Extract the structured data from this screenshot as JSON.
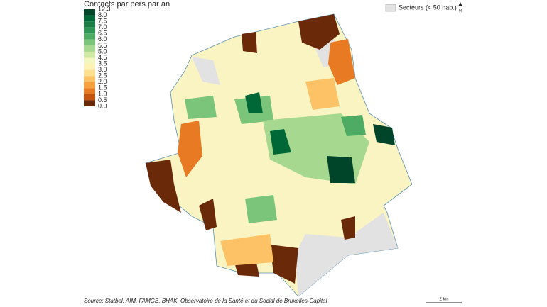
{
  "legend": {
    "title": "Contacts par pers par an",
    "labels": [
      "12.3",
      "8.0",
      "7.5",
      "7.0",
      "6.5",
      "6.0",
      "5.5",
      "5.0",
      "4.5",
      "3.5",
      "3.0",
      "2.5",
      "2.0",
      "1.5",
      "1.0",
      "0.5",
      "0.0"
    ],
    "colors": [
      "#00452a",
      "#006837",
      "#1a7f45",
      "#2e9555",
      "#4eab63",
      "#7bc57b",
      "#a6d88f",
      "#cfe9a5",
      "#f3f7bf",
      "#fef3b5",
      "#fde08f",
      "#fdc266",
      "#f8a03e",
      "#e87a23",
      "#c4540f",
      "#6a2a0a"
    ]
  },
  "sectors_legend": "Secteurs (< 50 hab.)",
  "north": "N",
  "scale": "2 km",
  "source": "Source: Statbel, AIM, FAMGB, BHAK, Observatoire de la Santé et du Social de Bruxelles-Capital"
}
